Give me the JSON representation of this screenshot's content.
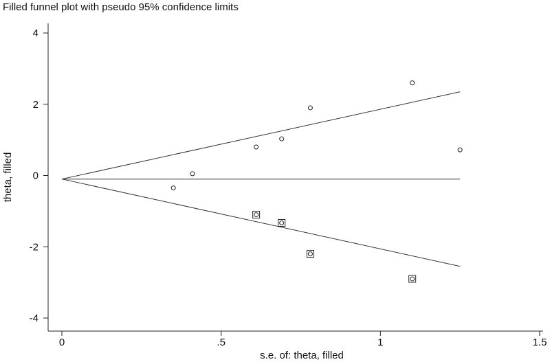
{
  "chart_data": {
    "type": "scatter",
    "title": "Filled funnel plot with pseudo 95% confidence limits",
    "xlabel": "s.e. of: theta, filled",
    "ylabel": "theta, filled",
    "xlim": [
      0,
      1.5
    ],
    "ylim": [
      -4,
      4
    ],
    "x_ticks": [
      0,
      0.5,
      1,
      1.5
    ],
    "x_tick_labels": [
      "0",
      ".5",
      "1",
      "1.5"
    ],
    "y_ticks": [
      -4,
      -2,
      0,
      2,
      4
    ],
    "y_tick_labels": [
      "-4",
      "-2",
      "0",
      "2",
      "4"
    ],
    "grid": false,
    "pooled_theta": -0.1,
    "funnel_max_se": 1.25,
    "observed_studies": [
      {
        "se": 0.35,
        "theta": -0.35
      },
      {
        "se": 0.41,
        "theta": 0.05
      },
      {
        "se": 0.61,
        "theta": 0.8
      },
      {
        "se": 0.69,
        "theta": 1.03
      },
      {
        "se": 0.78,
        "theta": 1.9
      },
      {
        "se": 1.1,
        "theta": 2.6
      },
      {
        "se": 1.25,
        "theta": 0.72
      }
    ],
    "filled_studies": [
      {
        "se": 0.61,
        "theta": -1.1
      },
      {
        "se": 0.69,
        "theta": -1.33
      },
      {
        "se": 0.78,
        "theta": -2.2
      },
      {
        "se": 1.1,
        "theta": -2.9
      }
    ],
    "colors": {
      "ink": "#222222",
      "background": "#ffffff"
    }
  }
}
